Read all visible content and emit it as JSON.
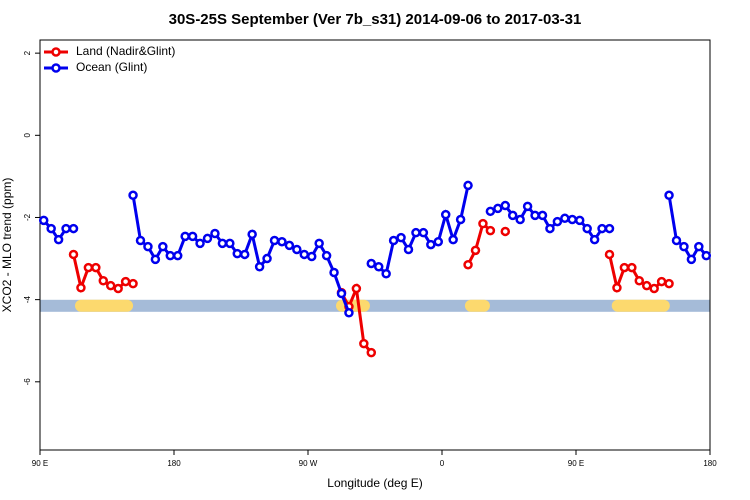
{
  "chart_data": {
    "type": "line",
    "title": "30S-25S September (Ver 7b_s31)   2014-09-06 to 2017-03-31",
    "x_label": "Longitude (deg E)",
    "y_label": "XCO2 - MLO trend (ppm)",
    "xlim": [
      90,
      540
    ],
    "xticks": [
      {
        "value": 90,
        "label": "90 E"
      },
      180,
      {
        "value": 270,
        "label": "90 W"
      },
      {
        "value": 360,
        "label": "0"
      },
      {
        "value": 450,
        "label": "90 E"
      },
      {
        "value": 540,
        "label": "180"
      }
    ],
    "ylim": [
      -7.66,
      2.32
    ],
    "yticks": [
      -6,
      -4,
      -2,
      0,
      2
    ],
    "legend": "top-left",
    "band": {
      "y": -4.15,
      "color": "#a5bbd8",
      "land_color": "#fcd96e",
      "land_ranges": [
        [
          113.5,
          152.5
        ],
        [
          288.8,
          311.6
        ],
        [
          375.4,
          392.2
        ],
        [
          474,
          513
        ]
      ]
    },
    "series": [
      {
        "name": "Land (Nadir&Glint)",
        "color": "#ee0000",
        "x": [
          112.5,
          117.5,
          122.5,
          127.5,
          132.5,
          137.5,
          142.5,
          147.5,
          152.5,
          157.5,
          292.5,
          297.5,
          302.5,
          307.5,
          312.5,
          317.5,
          377.5,
          382.5,
          387.5,
          392.5,
          397.5,
          402.5,
          407.5,
          472.5,
          477.5,
          482.5,
          487.5,
          492.5,
          497.5,
          502.5,
          507.5,
          512.5
        ],
        "values": [
          -2.9,
          -3.71,
          -3.22,
          -3.22,
          -3.54,
          -3.66,
          -3.73,
          -3.56,
          -3.61,
          null,
          -3.83,
          -4.17,
          -3.73,
          -5.07,
          -5.29,
          null,
          -3.15,
          -2.8,
          -2.15,
          -2.32,
          null,
          -2.34,
          null,
          -2.9,
          -3.71,
          -3.22,
          -3.22,
          -3.54,
          -3.66,
          -3.73,
          -3.56,
          -3.61
        ]
      },
      {
        "name": "Ocean (Glint)",
        "color": "#0000ee",
        "x": [
          92.5,
          97.5,
          102.5,
          107.5,
          112.5,
          117.5,
          122.5,
          127.5,
          132.5,
          137.5,
          142.5,
          147.5,
          152.5,
          157.5,
          162.5,
          167.5,
          172.5,
          177.5,
          182.5,
          187.5,
          192.5,
          197.5,
          202.5,
          207.5,
          212.5,
          217.5,
          222.5,
          227.5,
          232.5,
          237.5,
          242.5,
          247.5,
          252.5,
          257.5,
          262.5,
          267.5,
          272.5,
          277.5,
          282.5,
          287.5,
          292.5,
          297.5,
          302.5,
          307.5,
          312.5,
          317.5,
          322.5,
          327.5,
          332.5,
          337.5,
          342.5,
          347.5,
          352.5,
          357.5,
          362.5,
          367.5,
          372.5,
          377.5,
          382.5,
          387.5,
          392.5,
          397.5,
          402.5,
          407.5,
          412.5,
          417.5,
          422.5,
          427.5,
          432.5,
          437.5,
          442.5,
          447.5,
          452.5,
          457.5,
          462.5,
          467.5,
          472.5,
          477.5,
          482.5,
          487.5,
          492.5,
          497.5,
          502.5,
          507.5,
          512.5,
          517.5,
          522.5,
          527.5,
          532.5,
          537.5
        ],
        "values": [
          -2.07,
          -2.27,
          -2.54,
          -2.27,
          -2.27,
          null,
          null,
          null,
          null,
          null,
          null,
          null,
          -1.46,
          -2.56,
          -2.71,
          -3.02,
          -2.71,
          -2.93,
          -2.93,
          -2.46,
          -2.46,
          -2.63,
          -2.51,
          -2.39,
          -2.63,
          -2.63,
          -2.88,
          -2.9,
          -2.41,
          -3.2,
          -3.0,
          -2.56,
          -2.59,
          -2.68,
          -2.78,
          -2.9,
          -2.95,
          -2.63,
          -2.93,
          -3.34,
          -3.85,
          -4.32,
          null,
          null,
          -3.12,
          -3.2,
          -3.37,
          -2.56,
          -2.49,
          -2.78,
          -2.37,
          -2.37,
          -2.66,
          -2.59,
          -1.93,
          -2.54,
          -2.05,
          -1.22,
          null,
          null,
          -1.85,
          -1.78,
          -1.71,
          -1.95,
          -2.05,
          -1.73,
          -1.95,
          -1.95,
          -2.27,
          -2.1,
          -2.02,
          -2.05,
          -2.07,
          -2.27,
          -2.54,
          -2.27,
          -2.27,
          null,
          null,
          null,
          null,
          null,
          null,
          null,
          -1.46,
          -2.56,
          -2.71,
          -3.02,
          -2.71,
          -2.93
        ]
      }
    ]
  }
}
